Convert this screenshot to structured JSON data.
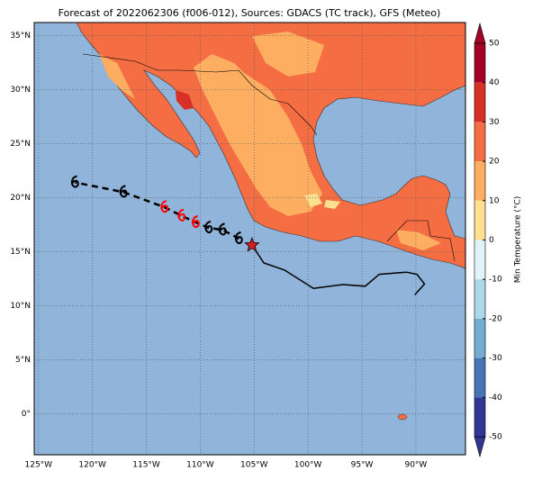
{
  "title": "Forecast of 2022062306 (f006-012), Sources: GDACS (TC track), GFS (Meteo)",
  "map": {
    "xlim": [
      -125.4,
      -85.4
    ],
    "ylim": [
      -3.8,
      36.2
    ],
    "lon_ticks": [
      {
        "value": -125,
        "label": "125°W"
      },
      {
        "value": -120,
        "label": "120°W"
      },
      {
        "value": -115,
        "label": "115°W"
      },
      {
        "value": -110,
        "label": "110°W"
      },
      {
        "value": -105,
        "label": "105°W"
      },
      {
        "value": -100,
        "label": "100°W"
      },
      {
        "value": -95,
        "label": "95°W"
      },
      {
        "value": -90,
        "label": "90°W"
      }
    ],
    "lat_ticks": [
      {
        "value": 35,
        "label": "35°N"
      },
      {
        "value": 30,
        "label": "30°N"
      },
      {
        "value": 25,
        "label": "25°N"
      },
      {
        "value": 20,
        "label": "20°N"
      },
      {
        "value": 15,
        "label": "15°N"
      },
      {
        "value": 10,
        "label": "10°N"
      },
      {
        "value": 5,
        "label": "5°N"
      },
      {
        "value": 0,
        "label": "0°"
      }
    ],
    "grid": true,
    "track": {
      "lon": [
        -105.2,
        -104.1,
        -102.2,
        -99.5,
        -96.8,
        -94.7,
        -93.4,
        -90.9,
        -89.9,
        -89.2,
        -90.1
      ],
      "lat": [
        15.6,
        13.95,
        13.3,
        11.6,
        11.95,
        11.8,
        12.9,
        13.1,
        12.9,
        12.0,
        11.0
      ],
      "color": "#000000"
    },
    "current_position": {
      "lon": -105.2,
      "lat": 15.6,
      "color": "#d62020"
    },
    "storms": {
      "lon": [
        -106.4,
        -107.9,
        -109.2,
        -110.4,
        -111.7,
        -113.3,
        -117.1,
        -121.6
      ],
      "lat": [
        16.2,
        17.0,
        17.2,
        17.7,
        18.3,
        19.1,
        20.5,
        21.4
      ],
      "colors": [
        "#000000",
        "#000000",
        "#000000",
        "#ff0000",
        "#ff0000",
        "#ff0000",
        "#000000",
        "#000000"
      ]
    }
  },
  "colorbar": {
    "label": "Min Temperature (°C)",
    "ticks": [
      50,
      40,
      30,
      20,
      10,
      0,
      -10,
      -20,
      -30,
      -40,
      -50
    ],
    "colors": [
      "#a50026",
      "#d73027",
      "#f46d43",
      "#fdae61",
      "#fee090",
      "#e0f3f8",
      "#abd9e9",
      "#74add1",
      "#4575b4",
      "#313695"
    ]
  }
}
